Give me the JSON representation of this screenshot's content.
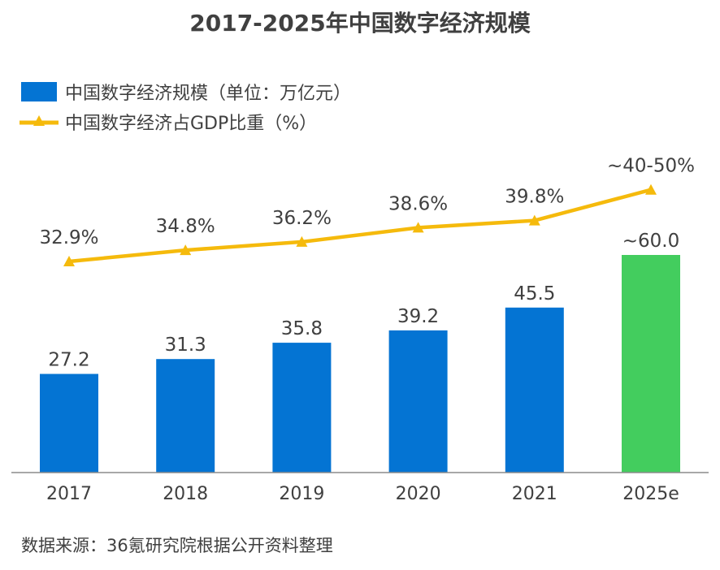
{
  "chart_data": {
    "type": "bar",
    "title": "2017-2025年中国数字经济规模",
    "categories": [
      "2017",
      "2018",
      "2019",
      "2020",
      "2021",
      "2025e"
    ],
    "series": [
      {
        "name": "中国数字经济规模（单位：万亿元）",
        "type": "bar",
        "values": [
          27.2,
          31.3,
          35.8,
          39.2,
          45.5,
          60.0
        ],
        "labels": [
          "27.2",
          "31.3",
          "35.8",
          "39.2",
          "45.5",
          "~60.0"
        ],
        "colors": [
          "#0474D3",
          "#0474D3",
          "#0474D3",
          "#0474D3",
          "#0474D3",
          "#43CD5E"
        ]
      },
      {
        "name": "中国数字经济占GDP比重（%）",
        "type": "line",
        "values": [
          32.9,
          34.8,
          36.2,
          38.6,
          39.8,
          45.0
        ],
        "labels": [
          "32.9%",
          "34.8%",
          "36.2%",
          "38.6%",
          "39.8%",
          "~40-50%"
        ],
        "color": "#F5BA0C",
        "marker": "triangle"
      }
    ],
    "legend_position": "top-left",
    "grid": false
  },
  "source": "数据来源：36氪研究院根据公开资料整理"
}
